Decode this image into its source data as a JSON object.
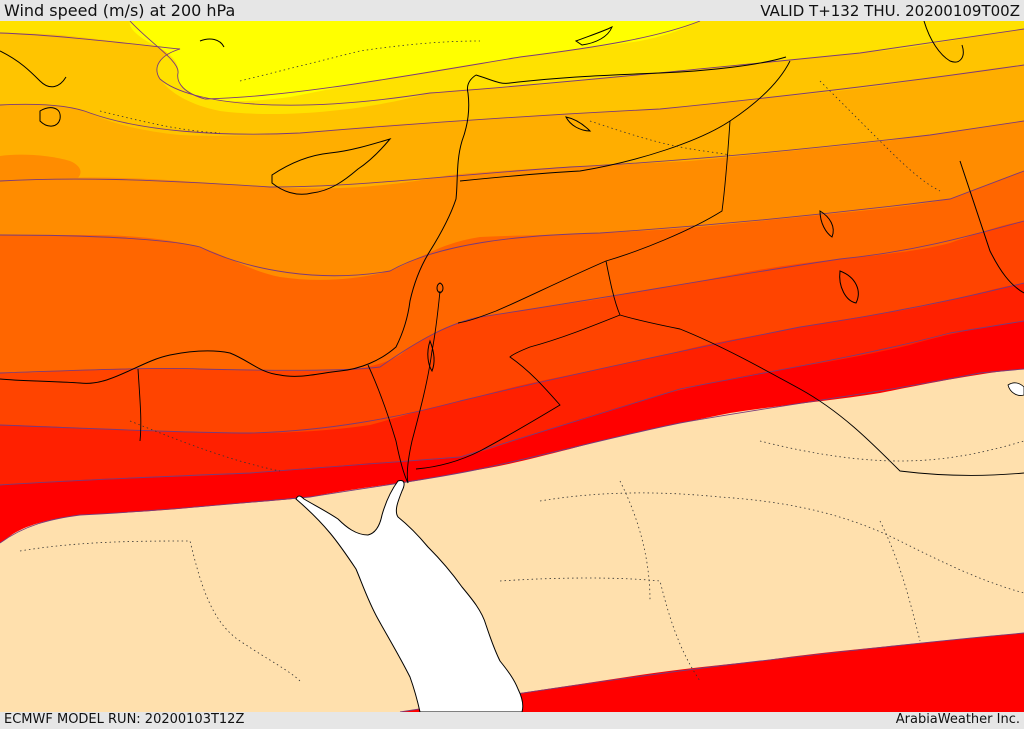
{
  "header": {
    "title": "Wind speed (m/s) at 200 hPa",
    "valid": "VALID T+132 THU. 20200109T00Z"
  },
  "footer": {
    "model_run": "ECMWF MODEL RUN: 20200103T12Z",
    "brand": "ArabiaWeather Inc."
  },
  "map": {
    "field": "wind speed at 200 hPa",
    "colors": {
      "land_low": "#ffe0ad",
      "sea": "#ffffff",
      "band_1": "#ff0000",
      "band_2": "#ff2000",
      "band_3": "#ff4400",
      "band_4": "#ff6600",
      "band_5": "#ff8c00",
      "band_6": "#ffae00",
      "band_7": "#ffc400",
      "band_8": "#ffe100",
      "band_9": "#ffff00",
      "contour": "#7a3a7a",
      "coastline": "#000000",
      "border": "#000000"
    }
  }
}
